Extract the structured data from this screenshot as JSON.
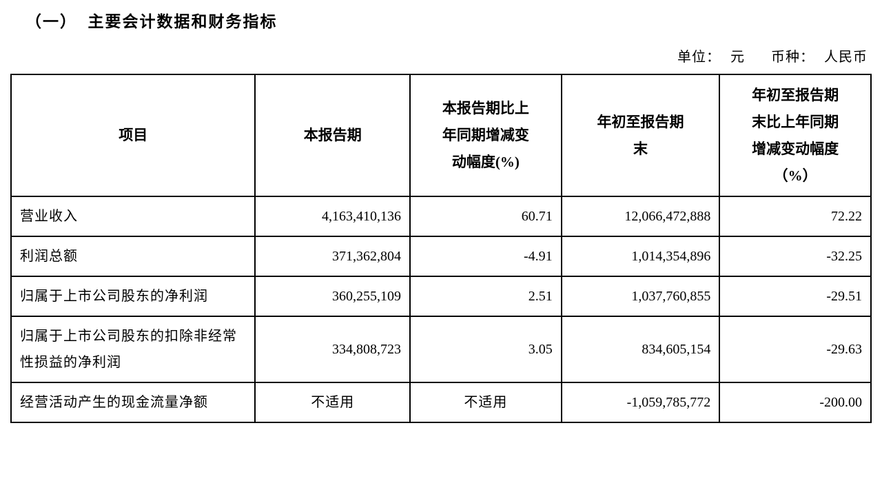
{
  "page": {
    "section_title": "（一）  主要会计数据和财务指标",
    "unit_label": "单位：",
    "unit_value": "元",
    "currency_label": "币种：",
    "currency_value": "人民币"
  },
  "table": {
    "headers": [
      "项目",
      "本报告期",
      "本报告期比上年同期增减变动幅度(%)",
      "年初至报告期末",
      "年初至报告期末比上年同期增减变动幅度（%）"
    ],
    "rows": [
      [
        "营业收入",
        "4,163,410,136",
        "60.71",
        "12,066,472,888",
        "72.22"
      ],
      [
        "利润总额",
        "371,362,804",
        "-4.91",
        "1,014,354,896",
        "-32.25"
      ],
      [
        "归属于上市公司股东的净利润",
        "360,255,109",
        "2.51",
        "1,037,760,855",
        "-29.51"
      ],
      [
        "归属于上市公司股东的扣除非经常性损益的净利润",
        "334,808,723",
        "3.05",
        "834,605,154",
        "-29.63"
      ],
      [
        "经营活动产生的现金流量净额",
        "不适用",
        "不适用",
        "-1,059,785,772",
        "-200.00"
      ]
    ]
  }
}
